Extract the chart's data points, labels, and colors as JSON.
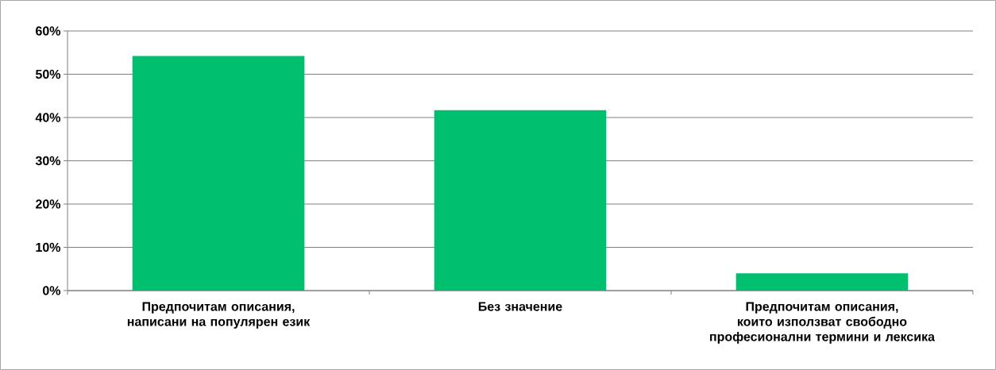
{
  "chart_data": {
    "type": "bar",
    "categories": [
      "Предпочитам описания, написани на популярен език",
      "Без значение",
      "Предпочитам описания, които използват свободно професионални термини и лексика"
    ],
    "values": [
      54.2,
      41.7,
      4.0
    ],
    "color": "#00bf6f",
    "ylim": [
      0,
      60
    ],
    "yticks": [
      {
        "value": 0,
        "label": "0%"
      },
      {
        "value": 10,
        "label": "10%"
      },
      {
        "value": 20,
        "label": "20%"
      },
      {
        "value": 30,
        "label": "30%"
      },
      {
        "value": 40,
        "label": "40%"
      },
      {
        "value": 50,
        "label": "50%"
      },
      {
        "value": 60,
        "label": "60%"
      }
    ],
    "grid": "y"
  }
}
